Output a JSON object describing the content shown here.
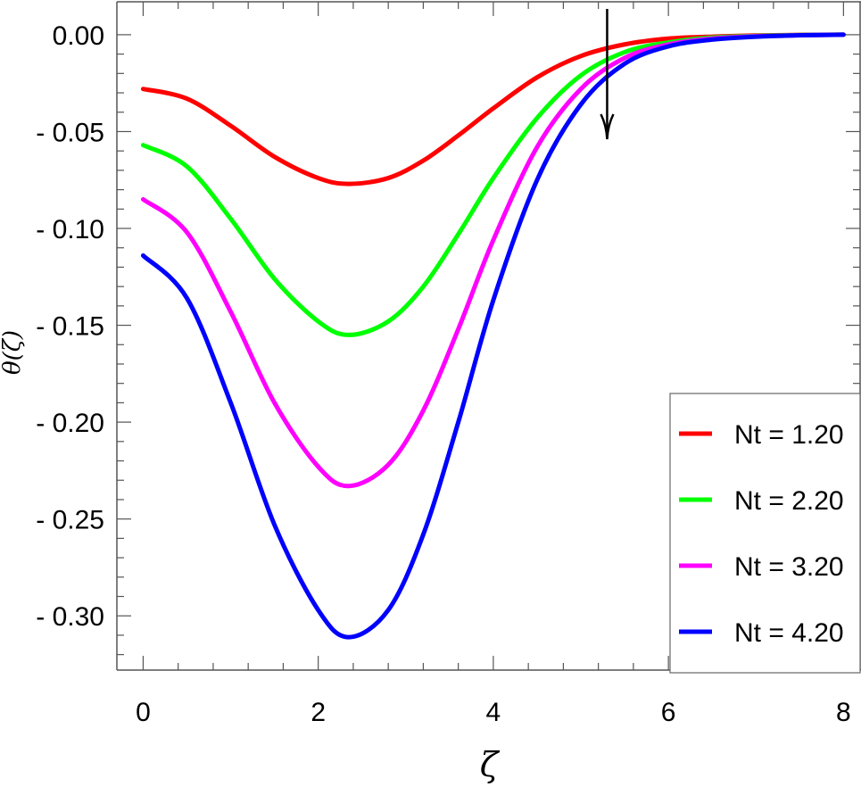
{
  "chart_data": {
    "type": "line",
    "xlabel": "ζ",
    "ylabel": "θ(ζ)",
    "xlim": [
      -0.3,
      8.2
    ],
    "ylim": [
      -0.328,
      0.017
    ],
    "x_ticks": [
      0,
      2,
      4,
      6,
      8
    ],
    "y_ticks": [
      0.0,
      -0.05,
      -0.1,
      -0.15,
      -0.2,
      -0.25,
      -0.3
    ],
    "x_tick_labels": [
      "0",
      "2",
      "4",
      "6",
      "8"
    ],
    "y_tick_labels": [
      "0.00",
      "- 0.05",
      "- 0.10",
      "- 0.15",
      "- 0.20",
      "- 0.25",
      "- 0.30"
    ],
    "grid": false,
    "legend_position": "bottom-right",
    "annotation": "arrow pointing downward near ζ ≈ 5.3 (increasing Nt)",
    "series": [
      {
        "name": "Nt = 1.20",
        "color": "#ff0000",
        "x": [
          0,
          0.5,
          1.0,
          1.5,
          2.0,
          2.35,
          2.8,
          3.2,
          3.6,
          4.0,
          4.5,
          5.0,
          5.5,
          6.0,
          6.5,
          7.0,
          7.5,
          8.0
        ],
        "values": [
          -0.028,
          -0.033,
          -0.047,
          -0.063,
          -0.074,
          -0.077,
          -0.074,
          -0.065,
          -0.052,
          -0.038,
          -0.022,
          -0.011,
          -0.005,
          -0.002,
          -0.001,
          -0.0004,
          -0.0001,
          0.0
        ]
      },
      {
        "name": "Nt = 2.20",
        "color": "#00ff00",
        "x": [
          0,
          0.5,
          1.0,
          1.5,
          2.0,
          2.35,
          2.8,
          3.2,
          3.6,
          4.0,
          4.5,
          5.0,
          5.5,
          6.0,
          6.5,
          7.0,
          7.5,
          8.0
        ],
        "values": [
          -0.057,
          -0.068,
          -0.095,
          -0.126,
          -0.148,
          -0.155,
          -0.148,
          -0.13,
          -0.103,
          -0.074,
          -0.043,
          -0.021,
          -0.009,
          -0.004,
          -0.0015,
          -0.0006,
          -0.0002,
          0.0
        ]
      },
      {
        "name": "Nt = 3.20",
        "color": "#ff00ff",
        "x": [
          0,
          0.5,
          1.0,
          1.5,
          2.0,
          2.35,
          2.8,
          3.2,
          3.6,
          4.0,
          4.5,
          5.0,
          5.5,
          6.0,
          6.5,
          7.0,
          7.5,
          8.0
        ],
        "values": [
          -0.085,
          -0.102,
          -0.143,
          -0.19,
          -0.223,
          -0.233,
          -0.222,
          -0.194,
          -0.152,
          -0.106,
          -0.058,
          -0.028,
          -0.012,
          -0.005,
          -0.002,
          -0.0008,
          -0.0003,
          0.0
        ]
      },
      {
        "name": "Nt = 4.20",
        "color": "#0000ff",
        "x": [
          0,
          0.5,
          1.0,
          1.5,
          2.0,
          2.35,
          2.8,
          3.2,
          3.6,
          4.0,
          4.5,
          5.0,
          5.5,
          6.0,
          6.5,
          7.0,
          7.5,
          8.0
        ],
        "values": [
          -0.114,
          -0.136,
          -0.19,
          -0.253,
          -0.297,
          -0.311,
          -0.297,
          -0.258,
          -0.2,
          -0.137,
          -0.075,
          -0.036,
          -0.015,
          -0.006,
          -0.0025,
          -0.001,
          -0.0003,
          0.0
        ]
      }
    ]
  }
}
